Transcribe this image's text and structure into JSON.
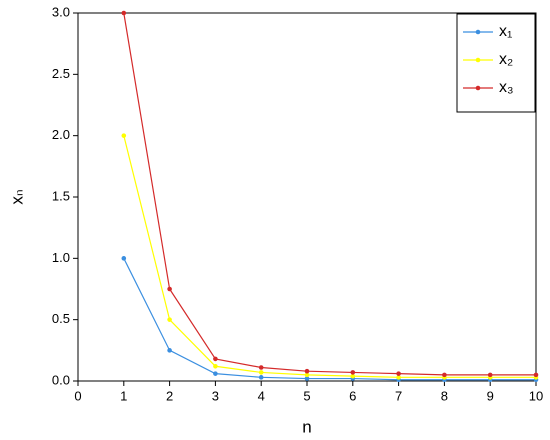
{
  "chart_data": {
    "type": "line",
    "xlabel": "n",
    "ylabel": "xₙ",
    "x": [
      1,
      2,
      3,
      4,
      5,
      6,
      7,
      8,
      9,
      10
    ],
    "series": [
      {
        "name": "x₁",
        "color": "#3b8fe0",
        "values": [
          1.0,
          0.25,
          0.06,
          0.03,
          0.02,
          0.02,
          0.01,
          0.01,
          0.01,
          0.01
        ]
      },
      {
        "name": "x₂",
        "color": "#ffff00",
        "values": [
          2.0,
          0.5,
          0.12,
          0.07,
          0.05,
          0.04,
          0.03,
          0.03,
          0.03,
          0.03
        ]
      },
      {
        "name": "x₃",
        "color": "#d42a2a",
        "values": [
          3.0,
          0.75,
          0.18,
          0.11,
          0.08,
          0.07,
          0.06,
          0.05,
          0.05,
          0.05
        ]
      }
    ],
    "xlim": [
      0,
      10
    ],
    "xticks": [
      0,
      1,
      2,
      3,
      4,
      5,
      6,
      7,
      8,
      9,
      10
    ],
    "ylim": [
      0,
      3
    ],
    "yticks": [
      {
        "value": 0,
        "label": "0.0"
      },
      {
        "value": 0.5,
        "label": "0.5"
      },
      {
        "value": 1,
        "label": "1.0"
      },
      {
        "value": 1.5,
        "label": "1.5"
      },
      {
        "value": 2,
        "label": "2.0"
      },
      {
        "value": 2.5,
        "label": "2.5"
      },
      {
        "value": 3,
        "label": "3.0"
      }
    ],
    "legend": "upper right",
    "grid": false
  }
}
